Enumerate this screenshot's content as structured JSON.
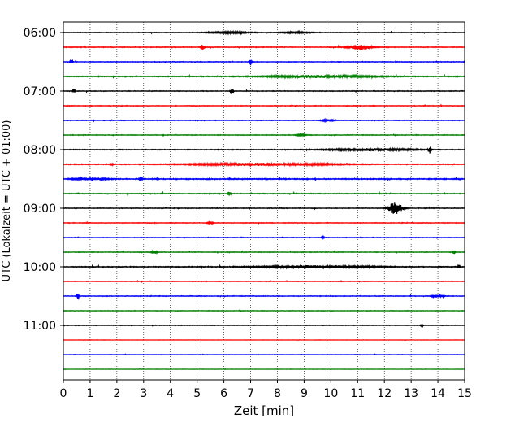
{
  "chart_data": {
    "type": "line",
    "xlabel": "Zeit  [min]",
    "ylabel": "UTC (Lokalzeit = UTC + 01:00)",
    "xlim": [
      0,
      15
    ],
    "x_ticks": [
      0,
      1,
      2,
      3,
      4,
      5,
      6,
      7,
      8,
      9,
      10,
      11,
      12,
      13,
      14,
      15
    ],
    "x_tick_labels": [
      "0",
      "1",
      "2",
      "3",
      "4",
      "5",
      "6",
      "7",
      "8",
      "9",
      "10",
      "11",
      "12",
      "13",
      "14",
      "15"
    ],
    "vertical_grid": true,
    "grid_style": "dotted",
    "y_tick_labels": [
      "06:00",
      "07:00",
      "08:00",
      "09:00",
      "10:00",
      "11:00"
    ],
    "trace_minutes_per_row": 15,
    "colors": [
      "#000000",
      "#ff0000",
      "#0000ff",
      "#008000"
    ],
    "traces": [
      {
        "time": "06:00",
        "color": "black",
        "noise": 0.25,
        "bursts": [
          {
            "x": 6.2,
            "w": 0.8,
            "amp": 1.0
          },
          {
            "x": 8.7,
            "w": 0.6,
            "amp": 0.8
          }
        ]
      },
      {
        "time": "06:15",
        "color": "red",
        "noise": 0.35,
        "bursts": [
          {
            "x": 5.2,
            "w": 0.05,
            "amp": 4.0
          },
          {
            "x": 11.1,
            "w": 0.4,
            "amp": 3.0
          }
        ]
      },
      {
        "time": "06:30",
        "color": "blue",
        "noise": 0.3,
        "bursts": [
          {
            "x": 0.3,
            "w": 0.05,
            "amp": 2.5
          },
          {
            "x": 7.0,
            "w": 0.05,
            "amp": 4.0
          }
        ]
      },
      {
        "time": "06:45",
        "color": "green",
        "noise": 0.4,
        "bursts": [
          {
            "x": 9.6,
            "w": 1.8,
            "amp": 1.5
          }
        ]
      },
      {
        "time": "07:00",
        "color": "black",
        "noise": 0.3,
        "bursts": [
          {
            "x": 0.4,
            "w": 0.05,
            "amp": 2.0
          },
          {
            "x": 6.3,
            "w": 0.05,
            "amp": 4.0
          }
        ]
      },
      {
        "time": "07:15",
        "color": "red",
        "noise": 0.3,
        "bursts": []
      },
      {
        "time": "07:30",
        "color": "blue",
        "noise": 0.3,
        "bursts": [
          {
            "x": 9.9,
            "w": 0.2,
            "amp": 1.5
          }
        ]
      },
      {
        "time": "07:45",
        "color": "green",
        "noise": 0.3,
        "bursts": [
          {
            "x": 8.9,
            "w": 0.2,
            "amp": 1.0
          }
        ]
      },
      {
        "time": "08:00",
        "color": "black",
        "noise": 0.35,
        "bursts": [
          {
            "x": 11.5,
            "w": 1.5,
            "amp": 1.5
          },
          {
            "x": 13.7,
            "w": 0.05,
            "amp": 4.0
          }
        ]
      },
      {
        "time": "08:15",
        "color": "red",
        "noise": 0.4,
        "bursts": [
          {
            "x": 1.8,
            "w": 0.05,
            "amp": 2.0
          },
          {
            "x": 7.5,
            "w": 2.5,
            "amp": 1.5
          }
        ]
      },
      {
        "time": "08:30",
        "color": "blue",
        "noise": 0.5,
        "bursts": [
          {
            "x": 1.0,
            "w": 0.5,
            "amp": 1.5
          },
          {
            "x": 2.9,
            "w": 0.05,
            "amp": 3.0
          }
        ]
      },
      {
        "time": "08:45",
        "color": "green",
        "noise": 0.35,
        "bursts": [
          {
            "x": 6.2,
            "w": 0.05,
            "amp": 3.0
          }
        ]
      },
      {
        "time": "09:00",
        "color": "black",
        "noise": 0.3,
        "bursts": [
          {
            "x": 12.4,
            "w": 0.25,
            "amp": 8.0
          }
        ]
      },
      {
        "time": "09:15",
        "color": "red",
        "noise": 0.3,
        "bursts": [
          {
            "x": 5.5,
            "w": 0.1,
            "amp": 1.5
          }
        ]
      },
      {
        "time": "09:30",
        "color": "blue",
        "noise": 0.25,
        "bursts": [
          {
            "x": 9.7,
            "w": 0.05,
            "amp": 1.5
          }
        ]
      },
      {
        "time": "09:45",
        "color": "green",
        "noise": 0.3,
        "bursts": [
          {
            "x": 3.4,
            "w": 0.1,
            "amp": 2.0
          },
          {
            "x": 14.6,
            "w": 0.05,
            "amp": 2.0
          }
        ]
      },
      {
        "time": "10:00",
        "color": "black",
        "noise": 0.4,
        "bursts": [
          {
            "x": 9.5,
            "w": 2.0,
            "amp": 1.5
          },
          {
            "x": 14.8,
            "w": 0.05,
            "amp": 3.0
          }
        ]
      },
      {
        "time": "10:15",
        "color": "red",
        "noise": 0.25,
        "bursts": []
      },
      {
        "time": "10:30",
        "color": "blue",
        "noise": 0.3,
        "bursts": [
          {
            "x": 0.55,
            "w": 0.05,
            "amp": 5.0
          },
          {
            "x": 14.0,
            "w": 0.2,
            "amp": 2.0
          }
        ]
      },
      {
        "time": "10:45",
        "color": "green",
        "noise": 0.25,
        "bursts": []
      },
      {
        "time": "11:00",
        "color": "black",
        "noise": 0.25,
        "bursts": [
          {
            "x": 13.4,
            "w": 0.05,
            "amp": 1.5
          }
        ]
      },
      {
        "time": "11:15",
        "color": "red",
        "noise": 0.15,
        "bursts": []
      },
      {
        "time": "11:30",
        "color": "blue",
        "noise": 0.15,
        "bursts": []
      },
      {
        "time": "11:45",
        "color": "green",
        "noise": 0.15,
        "bursts": []
      }
    ]
  }
}
